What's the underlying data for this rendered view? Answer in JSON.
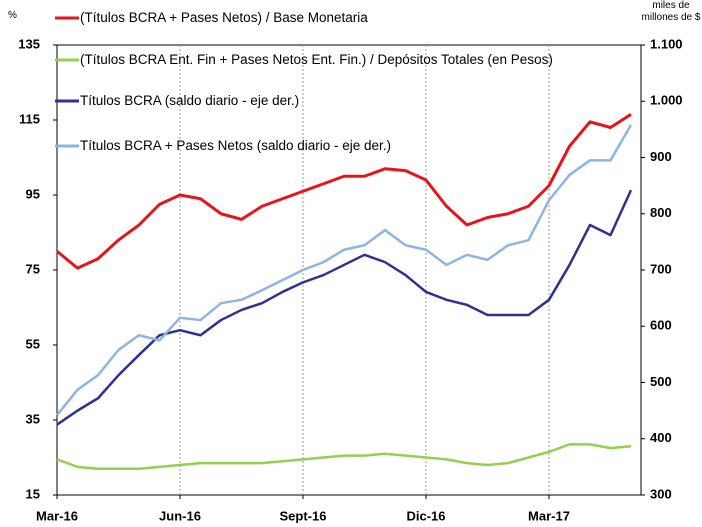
{
  "chart_data": {
    "type": "line",
    "y_unit": "%",
    "y2_unit": "miles de millones de $",
    "categories": [
      "Mar-16",
      null,
      null,
      null,
      null,
      null,
      "Jun-16",
      null,
      null,
      null,
      null,
      null,
      "Sept-16",
      null,
      null,
      null,
      null,
      null,
      "Dic-16",
      null,
      null,
      null,
      null,
      null,
      "Mar-17",
      null,
      null,
      null,
      null
    ],
    "ylim": [
      15,
      135
    ],
    "yticks": [
      15,
      35,
      55,
      75,
      95,
      115,
      135
    ],
    "y2lim": [
      300,
      1100
    ],
    "y2ticks": [
      300,
      400,
      500,
      600,
      700,
      800,
      900,
      {
        "value": 1000,
        "label": "1.000"
      },
      {
        "value": 1100,
        "label": "1.100"
      }
    ],
    "vgrid": true,
    "series": [
      {
        "name": "(Títulos BCRA + Pases Netos) / Base Monetaria",
        "color": "#e8141b",
        "axis": "y",
        "values": [
          80,
          75.5,
          78,
          83,
          87,
          92.5,
          95,
          94,
          90,
          88.5,
          92,
          94,
          96,
          98,
          100,
          100,
          102,
          101.5,
          99,
          92,
          87,
          89,
          90,
          92,
          97.5,
          108,
          114.5,
          113,
          116.5
        ]
      },
      {
        "name": "(Títulos BCRA Ent. Fin + Pases Netos Ent. Fin.) / Depósitos Totales (en Pesos)",
        "color": "#92d050",
        "axis": "y",
        "values": [
          24.5,
          22.5,
          22,
          22,
          22,
          22.5,
          23,
          23.5,
          23.5,
          23.5,
          23.5,
          24,
          24.5,
          25,
          25.5,
          25.5,
          26,
          25.5,
          25,
          24.5,
          23.5,
          23,
          23.5,
          25,
          26.5,
          28.5,
          28.5,
          27.5,
          28
        ]
      },
      {
        "name": "Títulos BCRA (saldo diario - eje der.)",
        "color": "#2e3192",
        "axis": "y2",
        "values": [
          425,
          450,
          472,
          513,
          549,
          584,
          593,
          584,
          611,
          629,
          641,
          661,
          678,
          691,
          709,
          727,
          714,
          691,
          661,
          647,
          638,
          620,
          620,
          620,
          647,
          709,
          780,
          762,
          842
        ]
      },
      {
        "name": "Títulos BCRA + Pases Netos (saldo diario - eje der.)",
        "color": "#8eb4e3",
        "axis": "y2",
        "values": [
          442,
          487,
          513,
          558,
          584,
          575,
          615,
          611,
          641,
          647,
          664,
          682,
          700,
          714,
          736,
          744,
          771,
          744,
          736,
          709,
          727,
          718,
          744,
          753,
          824,
          869,
          895,
          895,
          958
        ]
      }
    ]
  }
}
